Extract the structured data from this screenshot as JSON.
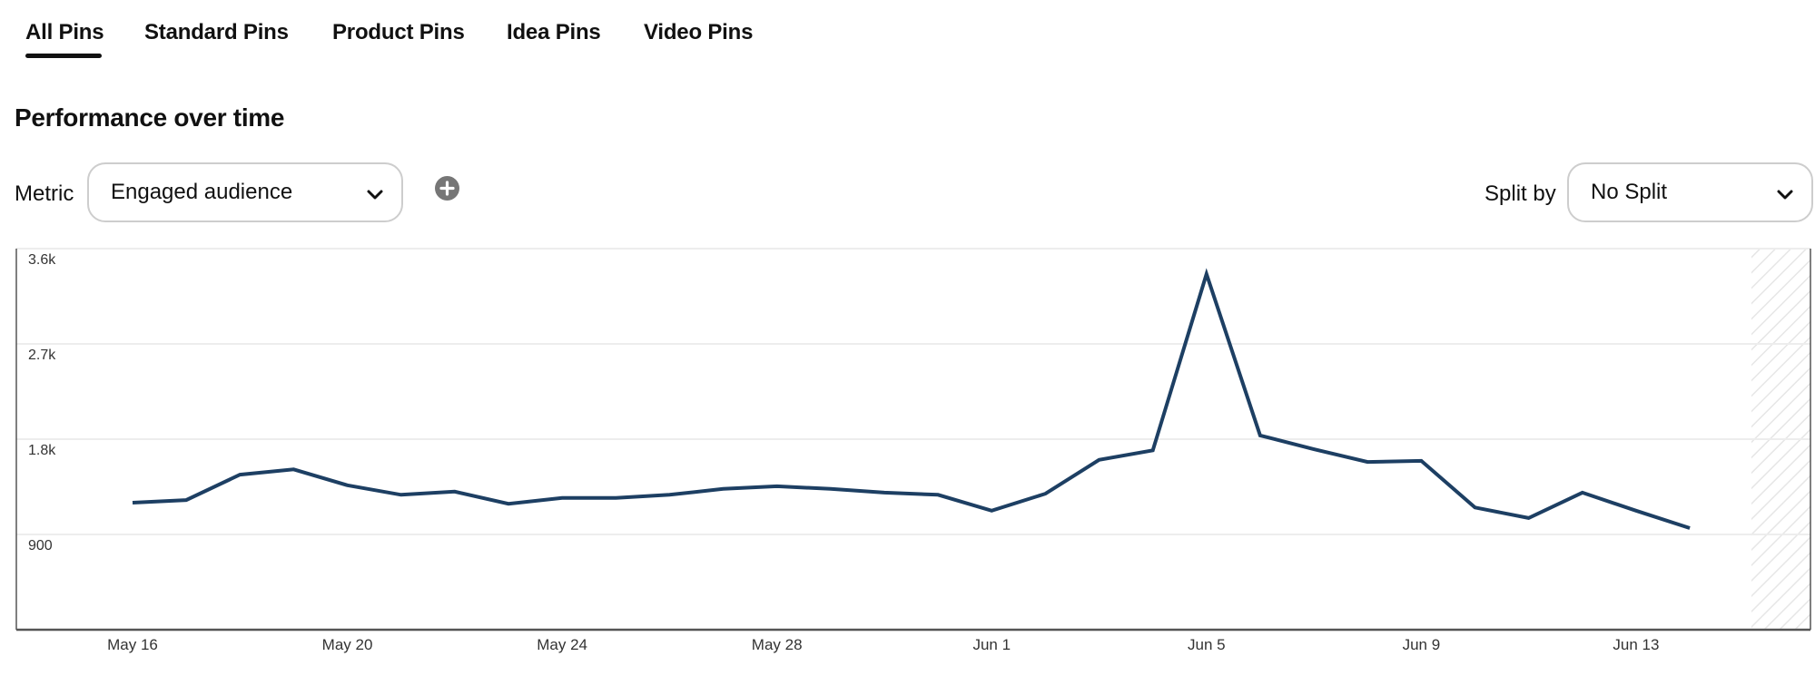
{
  "tabs": [
    {
      "label": "All Pins",
      "active": true
    },
    {
      "label": "Standard Pins",
      "active": false
    },
    {
      "label": "Product Pins",
      "active": false
    },
    {
      "label": "Idea Pins",
      "active": false
    },
    {
      "label": "Video Pins",
      "active": false
    }
  ],
  "section": {
    "title": "Performance over time"
  },
  "controls": {
    "metric_label": "Metric",
    "metric_value": "Engaged audience",
    "add_metric_icon": "plus-circle-icon",
    "split_label": "Split by",
    "split_value": "No Split",
    "dropdown_icon": "chevron-down-icon"
  },
  "colors": {
    "line": "#1d3f63",
    "gridline": "#ededed",
    "axis": "#555555",
    "add_icon": "#767676",
    "dropdown_border": "#cdcdcd"
  },
  "chart_data": {
    "type": "line",
    "title": "Performance over time",
    "metric": "Engaged audience",
    "xlabel": "",
    "ylabel": "",
    "ylim": [
      0,
      3600
    ],
    "yticks": [
      900,
      1800,
      2700,
      3600
    ],
    "ytick_labels": [
      "900",
      "1.8k",
      "2.7k",
      "3.6k"
    ],
    "grid": true,
    "legend": null,
    "xtick_labels": [
      "May 16",
      "May 20",
      "May 24",
      "May 28",
      "Jun 1",
      "Jun 5",
      "Jun 9",
      "Jun 13"
    ],
    "xtick_indices": [
      0,
      4,
      8,
      12,
      16,
      20,
      24,
      28
    ],
    "x": [
      "May 16",
      "May 17",
      "May 18",
      "May 19",
      "May 20",
      "May 21",
      "May 22",
      "May 23",
      "May 24",
      "May 25",
      "May 26",
      "May 27",
      "May 28",
      "May 29",
      "May 30",
      "May 31",
      "Jun 1",
      "Jun 2",
      "Jun 3",
      "Jun 4",
      "Jun 5",
      "Jun 6",
      "Jun 7",
      "Jun 8",
      "Jun 9",
      "Jun 10",
      "Jun 11",
      "Jun 12",
      "Jun 13",
      "Jun 14"
    ],
    "series": [
      {
        "name": "Engaged audience",
        "values": [
          1200,
          1225,
          1465,
          1515,
          1365,
          1275,
          1305,
          1190,
          1245,
          1245,
          1275,
          1330,
          1355,
          1330,
          1295,
          1275,
          1125,
          1285,
          1605,
          1695,
          3360,
          1835,
          1705,
          1585,
          1595,
          1155,
          1055,
          1295,
          1125,
          960
        ]
      }
    ],
    "shaded_region": "hatched area after last data point (incomplete period)"
  }
}
